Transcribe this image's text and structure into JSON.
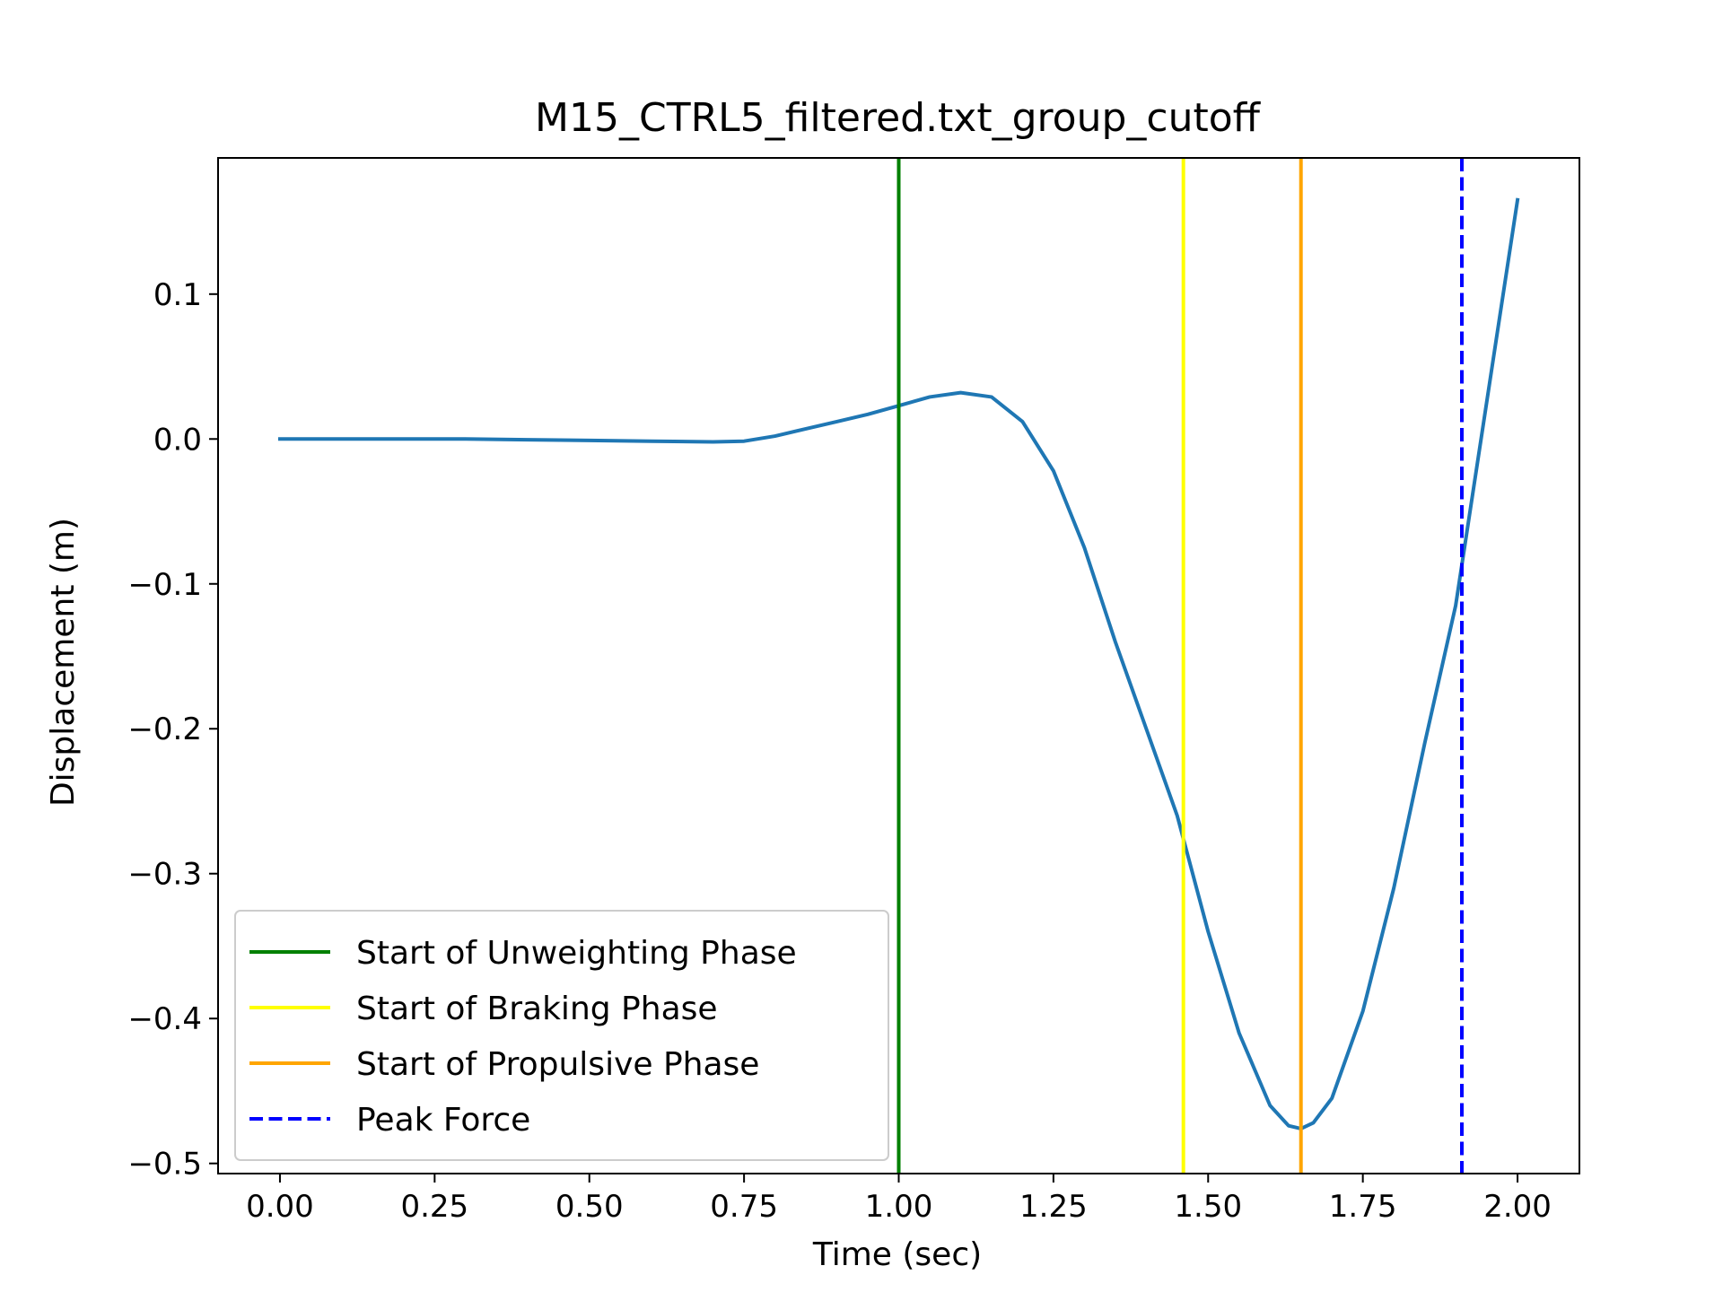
{
  "chart_data": {
    "type": "line",
    "title": "M15_CTRL5_filtered.txt_group_cutoff",
    "xlabel": "Time (sec)",
    "ylabel": "Displacement (m)",
    "xlim": [
      -0.1,
      2.1
    ],
    "ylim": [
      -0.507,
      0.194
    ],
    "xticks": [
      0.0,
      0.25,
      0.5,
      0.75,
      1.0,
      1.25,
      1.5,
      1.75,
      2.0
    ],
    "xtick_labels": [
      "0.00",
      "0.25",
      "0.50",
      "0.75",
      "1.00",
      "1.25",
      "1.50",
      "1.75",
      "2.00"
    ],
    "yticks": [
      0.1,
      0.0,
      -0.1,
      -0.2,
      -0.3,
      -0.4,
      -0.5
    ],
    "ytick_labels": [
      "0.1",
      "0.0",
      "−0.1",
      "−0.2",
      "−0.3",
      "−0.4",
      "−0.5"
    ],
    "grid": false,
    "legend_position": "lower-left",
    "series": [
      {
        "color": "#1f77b4",
        "x": [
          0.0,
          0.1,
          0.2,
          0.3,
          0.4,
          0.5,
          0.6,
          0.7,
          0.75,
          0.8,
          0.85,
          0.9,
          0.95,
          1.0,
          1.05,
          1.1,
          1.15,
          1.2,
          1.25,
          1.3,
          1.35,
          1.4,
          1.45,
          1.5,
          1.55,
          1.6,
          1.63,
          1.65,
          1.67,
          1.7,
          1.75,
          1.8,
          1.85,
          1.9,
          1.95,
          2.0
        ],
        "y": [
          0.0,
          0.0,
          0.0,
          0.0,
          -0.0005,
          -0.001,
          -0.0015,
          -0.002,
          -0.0015,
          0.002,
          0.007,
          0.012,
          0.017,
          0.023,
          0.029,
          0.032,
          0.029,
          0.012,
          -0.022,
          -0.075,
          -0.14,
          -0.2,
          -0.26,
          -0.34,
          -0.41,
          -0.46,
          -0.474,
          -0.476,
          -0.472,
          -0.455,
          -0.395,
          -0.31,
          -0.21,
          -0.115,
          0.025,
          0.165
        ]
      }
    ],
    "vlines": [
      {
        "name": "Start of Unweighting Phase",
        "x": 1.0,
        "color": "#008000",
        "style": "solid"
      },
      {
        "name": "Start of Braking Phase",
        "x": 1.46,
        "color": "#ffff00",
        "style": "solid"
      },
      {
        "name": "Start of Propulsive Phase",
        "x": 1.65,
        "color": "#ffa500",
        "style": "solid"
      },
      {
        "name": "Peak Force",
        "x": 1.91,
        "color": "#0000ff",
        "style": "dashed"
      }
    ]
  }
}
